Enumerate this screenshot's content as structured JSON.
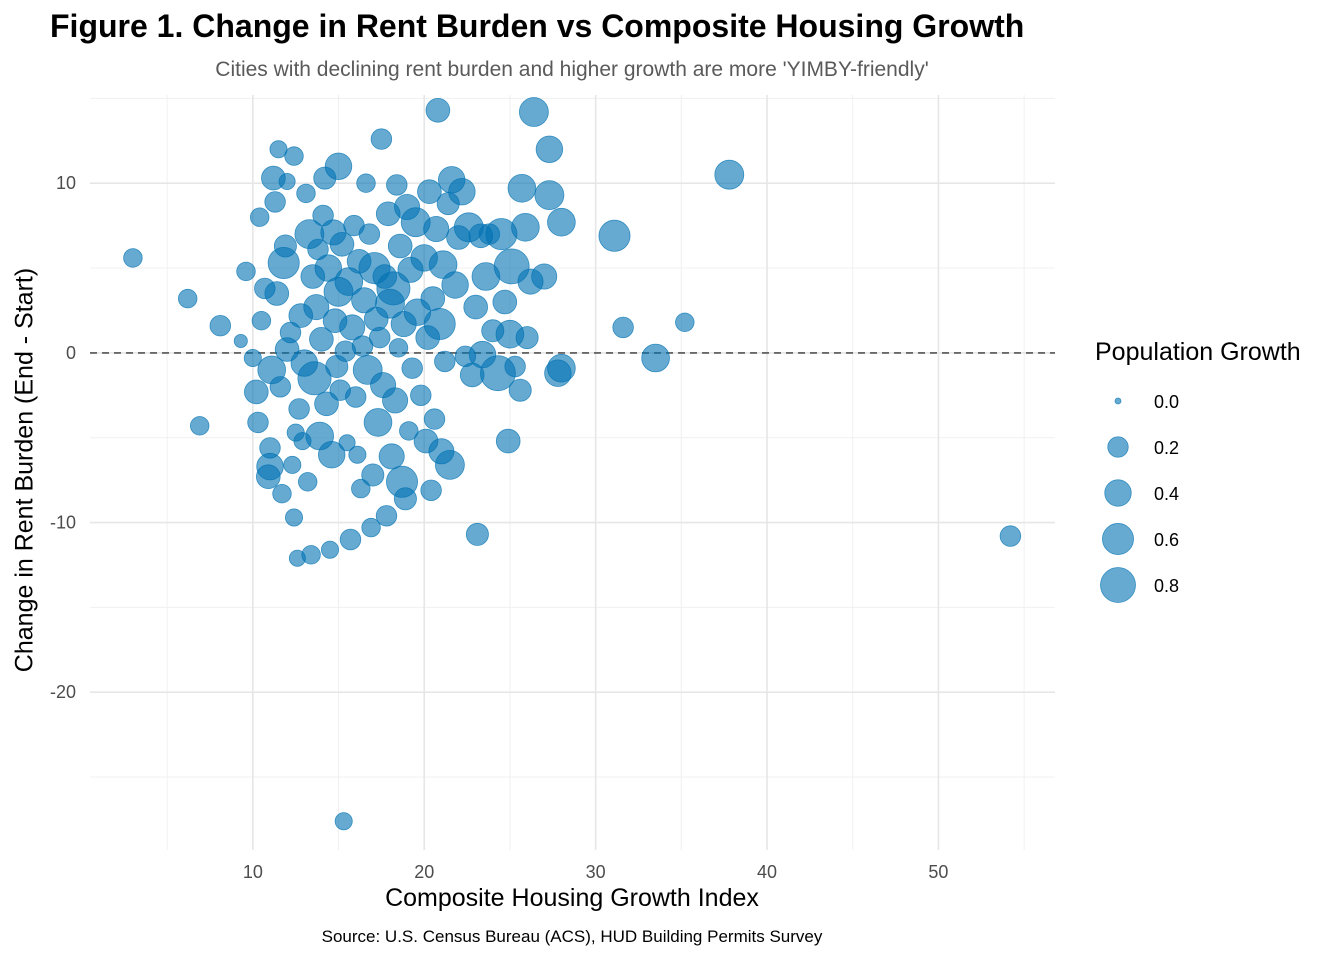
{
  "chart_data": {
    "type": "scatter",
    "title": "Figure 1. Change in Rent Burden vs Composite Housing Growth",
    "subtitle": "Cities with declining rent burden and higher growth are more 'YIMBY-friendly'",
    "xlabel": "Composite Housing Growth Index",
    "ylabel": "Change in Rent Burden (End - Start)",
    "caption": "Source: U.S. Census Bureau (ACS), HUD Building Permits Survey",
    "xlim": [
      0.5,
      56.8
    ],
    "ylim": [
      -29.3,
      15.2
    ],
    "x_ticks": [
      10,
      20,
      30,
      40,
      50
    ],
    "y_ticks": [
      -20,
      -10,
      0,
      10
    ],
    "x_tick_labels": [
      "10",
      "20",
      "30",
      "40",
      "50"
    ],
    "y_tick_labels": [
      "-20",
      "-10",
      "0",
      "10"
    ],
    "reference_line": {
      "y": 0,
      "style": "dashed"
    },
    "grid": true,
    "point_color": "#0072B2",
    "size_legend": {
      "title": "Population Growth",
      "placement": "right",
      "breaks": [
        0.0,
        0.2,
        0.4,
        0.6,
        0.8
      ],
      "labels": [
        "0.0",
        "0.2",
        "0.4",
        "0.6",
        "0.8"
      ]
    },
    "points": [
      {
        "x": 3.0,
        "y": 5.6,
        "size": 0.15
      },
      {
        "x": 6.2,
        "y": 3.2,
        "size": 0.15
      },
      {
        "x": 6.9,
        "y": -4.3,
        "size": 0.15
      },
      {
        "x": 8.1,
        "y": 1.6,
        "size": 0.2
      },
      {
        "x": 9.3,
        "y": 0.7,
        "size": 0.05
      },
      {
        "x": 9.6,
        "y": 4.8,
        "size": 0.15
      },
      {
        "x": 10.0,
        "y": -0.3,
        "size": 0.12
      },
      {
        "x": 10.2,
        "y": -2.3,
        "size": 0.3
      },
      {
        "x": 10.3,
        "y": -4.1,
        "size": 0.2
      },
      {
        "x": 10.4,
        "y": 8.0,
        "size": 0.15
      },
      {
        "x": 10.5,
        "y": 1.9,
        "size": 0.15
      },
      {
        "x": 10.7,
        "y": 3.8,
        "size": 0.2
      },
      {
        "x": 10.9,
        "y": -7.3,
        "size": 0.3
      },
      {
        "x": 11.0,
        "y": -6.7,
        "size": 0.4
      },
      {
        "x": 11.0,
        "y": -5.6,
        "size": 0.2
      },
      {
        "x": 11.1,
        "y": -1.0,
        "size": 0.45
      },
      {
        "x": 11.2,
        "y": 10.3,
        "size": 0.3
      },
      {
        "x": 11.3,
        "y": 8.9,
        "size": 0.2
      },
      {
        "x": 11.4,
        "y": 3.5,
        "size": 0.3
      },
      {
        "x": 11.5,
        "y": 12.0,
        "size": 0.12
      },
      {
        "x": 11.6,
        "y": -2.0,
        "size": 0.2
      },
      {
        "x": 11.7,
        "y": -8.3,
        "size": 0.15
      },
      {
        "x": 11.8,
        "y": 5.3,
        "size": 0.6
      },
      {
        "x": 11.9,
        "y": 6.3,
        "size": 0.25
      },
      {
        "x": 12.0,
        "y": 0.2,
        "size": 0.3
      },
      {
        "x": 12.0,
        "y": 10.1,
        "size": 0.1
      },
      {
        "x": 12.2,
        "y": 1.2,
        "size": 0.2
      },
      {
        "x": 12.3,
        "y": -6.6,
        "size": 0.12
      },
      {
        "x": 12.4,
        "y": -9.7,
        "size": 0.12
      },
      {
        "x": 12.4,
        "y": 11.6,
        "size": 0.15
      },
      {
        "x": 12.5,
        "y": -4.7,
        "size": 0.12
      },
      {
        "x": 12.6,
        "y": -12.1,
        "size": 0.1
      },
      {
        "x": 12.7,
        "y": -3.3,
        "size": 0.2
      },
      {
        "x": 12.8,
        "y": 2.2,
        "size": 0.3
      },
      {
        "x": 12.9,
        "y": -5.2,
        "size": 0.12
      },
      {
        "x": 13.0,
        "y": -0.6,
        "size": 0.4
      },
      {
        "x": 13.1,
        "y": 9.4,
        "size": 0.15
      },
      {
        "x": 13.2,
        "y": -7.6,
        "size": 0.15
      },
      {
        "x": 13.3,
        "y": 7.0,
        "size": 0.5
      },
      {
        "x": 13.4,
        "y": -11.9,
        "size": 0.15
      },
      {
        "x": 13.5,
        "y": 4.5,
        "size": 0.3
      },
      {
        "x": 13.6,
        "y": -1.5,
        "size": 0.7
      },
      {
        "x": 13.7,
        "y": 2.7,
        "size": 0.35
      },
      {
        "x": 13.8,
        "y": 6.1,
        "size": 0.2
      },
      {
        "x": 13.9,
        "y": -4.9,
        "size": 0.45
      },
      {
        "x": 14.0,
        "y": 0.8,
        "size": 0.3
      },
      {
        "x": 14.1,
        "y": 8.1,
        "size": 0.2
      },
      {
        "x": 14.2,
        "y": 10.3,
        "size": 0.25
      },
      {
        "x": 14.3,
        "y": -3.0,
        "size": 0.3
      },
      {
        "x": 14.4,
        "y": 5.0,
        "size": 0.4
      },
      {
        "x": 14.5,
        "y": -11.6,
        "size": 0.12
      },
      {
        "x": 14.6,
        "y": -6.0,
        "size": 0.4
      },
      {
        "x": 14.7,
        "y": 7.1,
        "size": 0.35
      },
      {
        "x": 14.8,
        "y": 1.9,
        "size": 0.3
      },
      {
        "x": 14.9,
        "y": -0.8,
        "size": 0.25
      },
      {
        "x": 15.0,
        "y": 3.6,
        "size": 0.5
      },
      {
        "x": 15.0,
        "y": 11.0,
        "size": 0.4
      },
      {
        "x": 15.1,
        "y": -2.2,
        "size": 0.2
      },
      {
        "x": 15.2,
        "y": 6.4,
        "size": 0.3
      },
      {
        "x": 15.3,
        "y": -27.6,
        "size": 0.12
      },
      {
        "x": 15.4,
        "y": 0.1,
        "size": 0.2
      },
      {
        "x": 15.5,
        "y": -5.3,
        "size": 0.1
      },
      {
        "x": 15.6,
        "y": 4.2,
        "size": 0.45
      },
      {
        "x": 15.7,
        "y": -11.0,
        "size": 0.2
      },
      {
        "x": 15.8,
        "y": 1.5,
        "size": 0.35
      },
      {
        "x": 15.9,
        "y": 7.5,
        "size": 0.2
      },
      {
        "x": 16.0,
        "y": -2.6,
        "size": 0.2
      },
      {
        "x": 16.1,
        "y": -6.0,
        "size": 0.12
      },
      {
        "x": 16.2,
        "y": 5.4,
        "size": 0.3
      },
      {
        "x": 16.3,
        "y": -8.0,
        "size": 0.15
      },
      {
        "x": 16.4,
        "y": 0.4,
        "size": 0.2
      },
      {
        "x": 16.5,
        "y": 3.1,
        "size": 0.35
      },
      {
        "x": 16.6,
        "y": 10.0,
        "size": 0.15
      },
      {
        "x": 16.7,
        "y": -1.0,
        "size": 0.5
      },
      {
        "x": 16.8,
        "y": 7.0,
        "size": 0.2
      },
      {
        "x": 16.9,
        "y": -10.3,
        "size": 0.15
      },
      {
        "x": 17.0,
        "y": -7.2,
        "size": 0.25
      },
      {
        "x": 17.1,
        "y": 5.0,
        "size": 0.6
      },
      {
        "x": 17.2,
        "y": 2.0,
        "size": 0.3
      },
      {
        "x": 17.3,
        "y": -4.1,
        "size": 0.45
      },
      {
        "x": 17.4,
        "y": 0.9,
        "size": 0.2
      },
      {
        "x": 17.5,
        "y": 12.6,
        "size": 0.2
      },
      {
        "x": 17.6,
        "y": -1.9,
        "size": 0.35
      },
      {
        "x": 17.7,
        "y": 4.5,
        "size": 0.3
      },
      {
        "x": 17.8,
        "y": -9.6,
        "size": 0.2
      },
      {
        "x": 17.9,
        "y": 8.2,
        "size": 0.3
      },
      {
        "x": 18.0,
        "y": 2.9,
        "size": 0.5
      },
      {
        "x": 18.1,
        "y": -6.1,
        "size": 0.35
      },
      {
        "x": 18.2,
        "y": 3.8,
        "size": 0.7
      },
      {
        "x": 18.3,
        "y": -2.8,
        "size": 0.35
      },
      {
        "x": 18.4,
        "y": 9.9,
        "size": 0.2
      },
      {
        "x": 18.5,
        "y": 0.3,
        "size": 0.15
      },
      {
        "x": 18.6,
        "y": 6.3,
        "size": 0.3
      },
      {
        "x": 18.7,
        "y": -7.6,
        "size": 0.6
      },
      {
        "x": 18.8,
        "y": 1.7,
        "size": 0.35
      },
      {
        "x": 18.9,
        "y": -8.6,
        "size": 0.25
      },
      {
        "x": 19.0,
        "y": 8.6,
        "size": 0.35
      },
      {
        "x": 19.1,
        "y": -4.6,
        "size": 0.15
      },
      {
        "x": 19.2,
        "y": 4.9,
        "size": 0.35
      },
      {
        "x": 19.3,
        "y": -0.9,
        "size": 0.2
      },
      {
        "x": 19.5,
        "y": 7.7,
        "size": 0.5
      },
      {
        "x": 19.6,
        "y": 2.4,
        "size": 0.4
      },
      {
        "x": 19.8,
        "y": -2.5,
        "size": 0.2
      },
      {
        "x": 20.0,
        "y": 5.6,
        "size": 0.4
      },
      {
        "x": 20.1,
        "y": -5.2,
        "size": 0.3
      },
      {
        "x": 20.2,
        "y": 0.9,
        "size": 0.3
      },
      {
        "x": 20.3,
        "y": 9.5,
        "size": 0.3
      },
      {
        "x": 20.4,
        "y": -8.1,
        "size": 0.2
      },
      {
        "x": 20.5,
        "y": 3.2,
        "size": 0.3
      },
      {
        "x": 20.6,
        "y": -3.9,
        "size": 0.2
      },
      {
        "x": 20.7,
        "y": 7.3,
        "size": 0.35
      },
      {
        "x": 20.8,
        "y": 14.3,
        "size": 0.3
      },
      {
        "x": 20.9,
        "y": 1.7,
        "size": 0.6
      },
      {
        "x": 21.0,
        "y": -5.8,
        "size": 0.35
      },
      {
        "x": 21.1,
        "y": 5.2,
        "size": 0.45
      },
      {
        "x": 21.2,
        "y": -0.5,
        "size": 0.2
      },
      {
        "x": 21.4,
        "y": 8.8,
        "size": 0.25
      },
      {
        "x": 21.5,
        "y": -6.6,
        "size": 0.5
      },
      {
        "x": 21.6,
        "y": 10.2,
        "size": 0.4
      },
      {
        "x": 21.8,
        "y": 4.0,
        "size": 0.4
      },
      {
        "x": 22.0,
        "y": 6.8,
        "size": 0.3
      },
      {
        "x": 22.2,
        "y": 9.5,
        "size": 0.4
      },
      {
        "x": 22.4,
        "y": -0.2,
        "size": 0.2
      },
      {
        "x": 22.6,
        "y": 7.4,
        "size": 0.5
      },
      {
        "x": 22.8,
        "y": -1.3,
        "size": 0.3
      },
      {
        "x": 23.0,
        "y": 2.7,
        "size": 0.3
      },
      {
        "x": 23.1,
        "y": -10.7,
        "size": 0.25
      },
      {
        "x": 23.3,
        "y": 6.9,
        "size": 0.3
      },
      {
        "x": 23.4,
        "y": -0.1,
        "size": 0.4
      },
      {
        "x": 23.6,
        "y": 4.5,
        "size": 0.45
      },
      {
        "x": 23.8,
        "y": 7.0,
        "size": 0.2
      },
      {
        "x": 24.0,
        "y": 1.3,
        "size": 0.25
      },
      {
        "x": 24.3,
        "y": -1.2,
        "size": 0.8
      },
      {
        "x": 24.5,
        "y": 7.0,
        "size": 0.6
      },
      {
        "x": 24.7,
        "y": 3.0,
        "size": 0.3
      },
      {
        "x": 24.9,
        "y": -5.2,
        "size": 0.3
      },
      {
        "x": 25.0,
        "y": 1.1,
        "size": 0.45
      },
      {
        "x": 25.1,
        "y": 5.1,
        "size": 0.8
      },
      {
        "x": 25.3,
        "y": -0.8,
        "size": 0.2
      },
      {
        "x": 25.6,
        "y": -2.2,
        "size": 0.25
      },
      {
        "x": 25.7,
        "y": 9.7,
        "size": 0.45
      },
      {
        "x": 25.9,
        "y": 7.4,
        "size": 0.45
      },
      {
        "x": 26.0,
        "y": 0.9,
        "size": 0.25
      },
      {
        "x": 26.2,
        "y": 4.2,
        "size": 0.35
      },
      {
        "x": 26.4,
        "y": 14.2,
        "size": 0.5
      },
      {
        "x": 27.0,
        "y": 4.5,
        "size": 0.35
      },
      {
        "x": 27.3,
        "y": 9.3,
        "size": 0.5
      },
      {
        "x": 27.3,
        "y": 12.0,
        "size": 0.4
      },
      {
        "x": 27.8,
        "y": -1.2,
        "size": 0.4
      },
      {
        "x": 28.0,
        "y": 7.7,
        "size": 0.45
      },
      {
        "x": 28.0,
        "y": -0.9,
        "size": 0.45
      },
      {
        "x": 31.1,
        "y": 6.9,
        "size": 0.6
      },
      {
        "x": 31.6,
        "y": 1.5,
        "size": 0.2
      },
      {
        "x": 33.5,
        "y": -0.3,
        "size": 0.45
      },
      {
        "x": 35.2,
        "y": 1.8,
        "size": 0.15
      },
      {
        "x": 37.8,
        "y": 10.5,
        "size": 0.5
      },
      {
        "x": 54.2,
        "y": -10.8,
        "size": 0.2
      }
    ]
  }
}
